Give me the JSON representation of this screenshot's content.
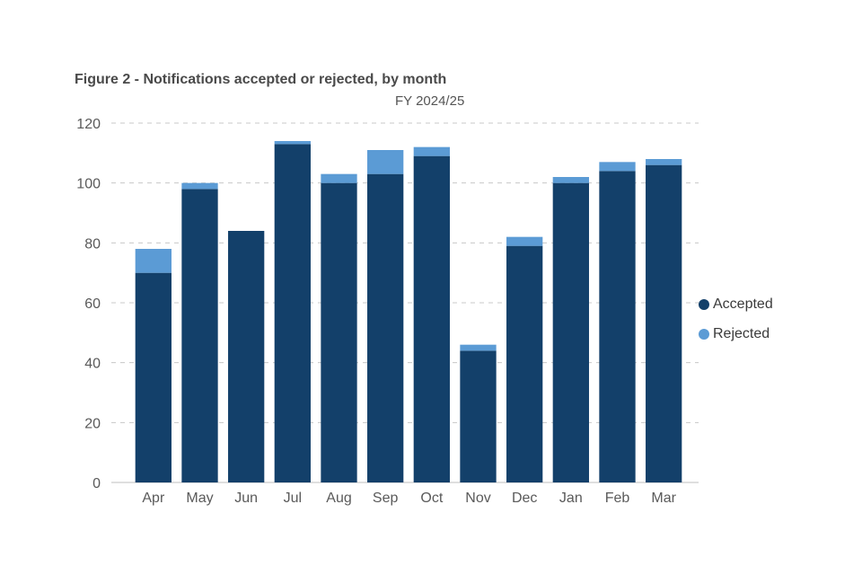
{
  "chart_data": {
    "type": "bar",
    "stacked": true,
    "title": "Figure 2 - Notifications accepted or rejected, by month",
    "subtitle": "FY 2024/25",
    "categories": [
      "Apr",
      "May",
      "Jun",
      "Jul",
      "Aug",
      "Sep",
      "Oct",
      "Nov",
      "Dec",
      "Jan",
      "Feb",
      "Mar"
    ],
    "series": [
      {
        "name": "Accepted",
        "color": "#13406a",
        "values": [
          70,
          98,
          84,
          113,
          100,
          103,
          109,
          44,
          79,
          100,
          104,
          106
        ]
      },
      {
        "name": "Rejected",
        "color": "#5b9bd5",
        "values": [
          8,
          2,
          0,
          1,
          3,
          8,
          3,
          2,
          3,
          2,
          3,
          2
        ]
      }
    ],
    "ylim": [
      0,
      120
    ],
    "yticks": [
      0,
      20,
      40,
      60,
      80,
      100,
      120
    ],
    "grid": true,
    "legend_position": "right"
  }
}
